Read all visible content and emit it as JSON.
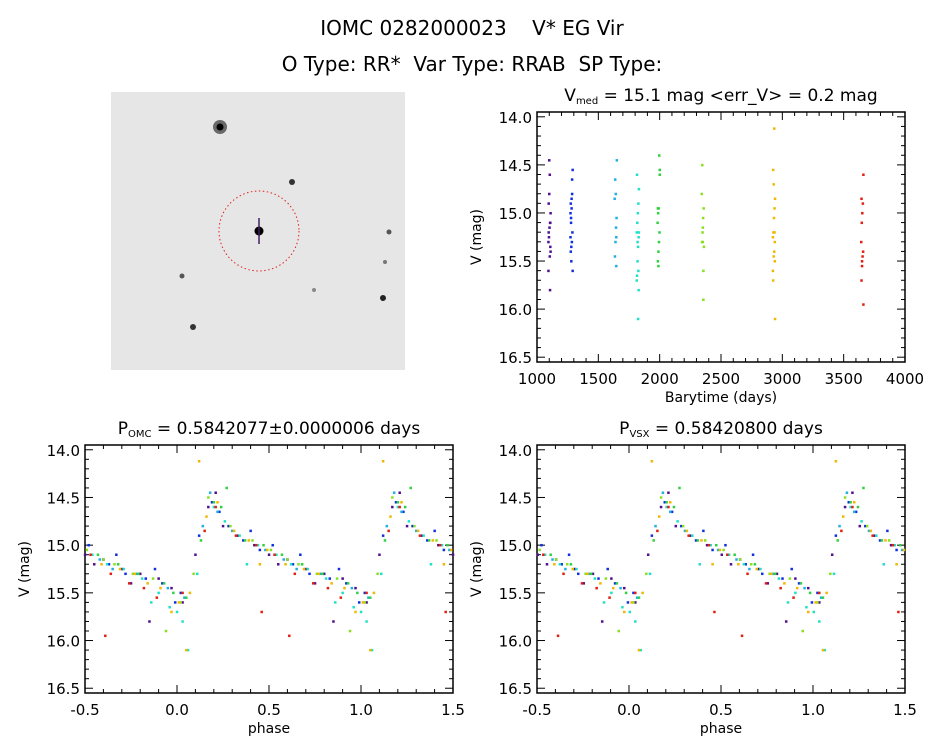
{
  "header": {
    "title_line1": "IOMC 0282000023    V* EG Vir",
    "title_line2": "O Type: RR*  Var Type: RRAB  SP Type:"
  },
  "sky_image": {
    "marker_color": "#e02020"
  },
  "chart_data": [
    {
      "type": "scatter",
      "id": "timeseries",
      "title_prefix": "V",
      "title_sub": "med",
      "title_rest": " = 15.1 mag <err_V> = 0.2 mag",
      "xlabel": "Barytime (days)",
      "ylabel": "V (mag)",
      "xlim": [
        1000,
        4000
      ],
      "ylim": [
        16.55,
        13.95
      ],
      "xticks": [
        "1000",
        "1500",
        "2000",
        "2500",
        "3000",
        "3500",
        "4000"
      ],
      "yticks": [
        "14.0",
        "14.5",
        "15.0",
        "15.5",
        "16.0",
        "16.5"
      ]
    },
    {
      "type": "scatter",
      "id": "phase_omc",
      "title_prefix": "P",
      "title_sub": "OMC",
      "title_rest": " = 0.5842077±0.0000006 days",
      "xlabel": "phase",
      "ylabel": "V (mag)",
      "xlim": [
        -0.5,
        1.5
      ],
      "ylim": [
        16.55,
        13.95
      ],
      "xticks": [
        "-0.5",
        "0.0",
        "0.5",
        "1.0",
        "1.5"
      ],
      "yticks": [
        "14.0",
        "14.5",
        "15.0",
        "15.5",
        "16.0",
        "16.5"
      ]
    },
    {
      "type": "scatter",
      "id": "phase_vsx",
      "title_prefix": "P",
      "title_sub": "VSX",
      "title_rest": " = 0.58420800 days",
      "xlabel": "phase",
      "ylabel": "V (mag)",
      "xlim": [
        -0.5,
        1.5
      ],
      "ylim": [
        16.55,
        13.95
      ],
      "xticks": [
        "-0.5",
        "0.0",
        "0.5",
        "1.0",
        "1.5"
      ],
      "yticks": [
        "14.0",
        "14.5",
        "15.0",
        "15.5",
        "16.0",
        "16.5"
      ]
    }
  ],
  "seasons": [
    {
      "time": 1100,
      "color": "#50108f",
      "points": [
        [
          0.03,
          15.6
        ],
        [
          0.1,
          15.1
        ],
        [
          0.17,
          14.6
        ],
        [
          0.25,
          14.8
        ],
        [
          0.33,
          14.9
        ],
        [
          0.42,
          15.0
        ],
        [
          0.5,
          15.1
        ],
        [
          0.6,
          15.15
        ],
        [
          0.7,
          15.25
        ],
        [
          0.8,
          15.3
        ],
        [
          0.9,
          15.35
        ],
        [
          0.97,
          15.45
        ],
        [
          0.21,
          14.45
        ],
        [
          0.55,
          15.2
        ],
        [
          0.75,
          15.4
        ],
        [
          0.85,
          15.8
        ]
      ]
    },
    {
      "time": 1280,
      "color": "#1030e0",
      "points": [
        [
          0.02,
          15.5
        ],
        [
          0.12,
          14.9
        ],
        [
          0.19,
          14.55
        ],
        [
          0.28,
          14.8
        ],
        [
          0.36,
          14.95
        ],
        [
          0.45,
          15.05
        ],
        [
          0.52,
          15.0
        ],
        [
          0.63,
          15.2
        ],
        [
          0.72,
          15.3
        ],
        [
          0.83,
          15.35
        ],
        [
          0.92,
          15.4
        ],
        [
          0.99,
          15.6
        ],
        [
          0.23,
          14.65
        ],
        [
          0.4,
          14.85
        ],
        [
          0.67,
          15.1
        ],
        [
          0.88,
          15.25
        ]
      ]
    },
    {
      "time": 1640,
      "color": "#20b0e0",
      "points": [
        [
          0.04,
          15.55
        ],
        [
          0.14,
          14.8
        ],
        [
          0.22,
          14.65
        ],
        [
          0.3,
          14.85
        ],
        [
          0.48,
          15.05
        ],
        [
          0.58,
          15.15
        ],
        [
          0.78,
          15.3
        ],
        [
          0.95,
          15.45
        ],
        [
          0.18,
          14.45
        ],
        [
          0.65,
          15.25
        ]
      ]
    },
    {
      "time": 1820,
      "color": "#20e0c8",
      "points": [
        [
          0.0,
          15.7
        ],
        [
          0.03,
          15.8
        ],
        [
          0.06,
          16.1
        ],
        [
          0.11,
          15.3
        ],
        [
          0.2,
          14.6
        ],
        [
          0.26,
          14.75
        ],
        [
          0.34,
          14.9
        ],
        [
          0.44,
          15.0
        ],
        [
          0.54,
          15.1
        ],
        [
          0.62,
          15.2
        ],
        [
          0.71,
          15.25
        ],
        [
          0.81,
          15.35
        ],
        [
          0.9,
          15.5
        ],
        [
          0.96,
          15.65
        ],
        [
          0.38,
          15.2
        ],
        [
          0.86,
          15.6
        ]
      ]
    },
    {
      "time": 1990,
      "color": "#30d040",
      "points": [
        [
          0.05,
          15.55
        ],
        [
          0.13,
          14.95
        ],
        [
          0.2,
          14.55
        ],
        [
          0.27,
          14.4
        ],
        [
          0.37,
          14.95
        ],
        [
          0.47,
          15.0
        ],
        [
          0.57,
          15.1
        ],
        [
          0.68,
          15.2
        ],
        [
          0.79,
          15.3
        ],
        [
          0.93,
          15.4
        ],
        [
          0.98,
          15.5
        ],
        [
          0.24,
          14.6
        ]
      ]
    },
    {
      "time": 2350,
      "color": "#88e020",
      "points": [
        [
          0.02,
          15.6
        ],
        [
          0.09,
          15.3
        ],
        [
          0.17,
          14.5
        ],
        [
          0.29,
          14.8
        ],
        [
          0.41,
          14.95
        ],
        [
          0.51,
          15.05
        ],
        [
          0.66,
          15.2
        ],
        [
          0.76,
          15.3
        ],
        [
          0.87,
          15.35
        ],
        [
          0.94,
          15.9
        ],
        [
          0.6,
          15.15
        ]
      ]
    },
    {
      "time": 2930,
      "color": "#f0b800",
      "points": [
        [
          0.01,
          15.6
        ],
        [
          0.07,
          15.5
        ],
        [
          0.12,
          14.12
        ],
        [
          0.16,
          14.7
        ],
        [
          0.22,
          14.55
        ],
        [
          0.31,
          14.85
        ],
        [
          0.39,
          14.95
        ],
        [
          0.49,
          15.05
        ],
        [
          0.59,
          15.2
        ],
        [
          0.69,
          15.25
        ],
        [
          0.77,
          15.3
        ],
        [
          0.84,
          15.4
        ],
        [
          0.91,
          15.45
        ],
        [
          0.97,
          15.7
        ],
        [
          0.05,
          16.1
        ],
        [
          0.45,
          15.2
        ]
      ]
    },
    {
      "time": 3650,
      "color": "#e02010",
      "points": [
        [
          0.03,
          15.5
        ],
        [
          0.15,
          14.85
        ],
        [
          0.21,
          14.6
        ],
        [
          0.32,
          14.9
        ],
        [
          0.43,
          15.0
        ],
        [
          0.53,
          15.1
        ],
        [
          0.64,
          15.3
        ],
        [
          0.74,
          15.4
        ],
        [
          0.82,
          15.45
        ],
        [
          0.89,
          15.55
        ],
        [
          0.46,
          15.7
        ],
        [
          0.61,
          15.95
        ]
      ]
    }
  ]
}
